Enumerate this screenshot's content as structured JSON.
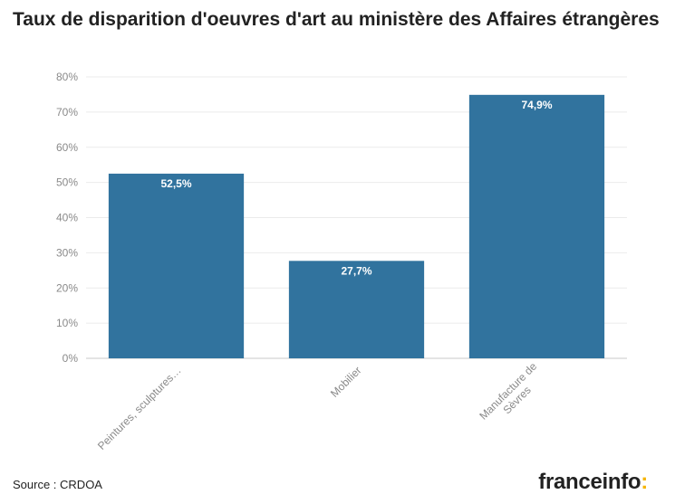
{
  "header": {
    "title": "Taux de disparition d'oeuvres d'art au ministère des Affaires étrangères"
  },
  "footer": {
    "source": "Source : CRDOA",
    "brand_name": "franceinfo",
    "brand_colon": ":"
  },
  "colors": {
    "bar": "#31739e",
    "brand_accent": "#f5b400"
  },
  "chart_data": {
    "type": "bar",
    "categories": [
      "Peintures, sculptures…",
      "Mobilier",
      "Manufacture de Sèvres"
    ],
    "category_lines": [
      [
        "Peintures, sculptures…"
      ],
      [
        "Mobilier"
      ],
      [
        "Manufacture de",
        "Sèvres"
      ]
    ],
    "values": [
      52.5,
      27.7,
      74.9
    ],
    "value_labels": [
      "52,5%",
      "27,7%",
      "74,9%"
    ],
    "unit": "%",
    "ylim": [
      0,
      80
    ],
    "yticks": [
      0,
      10,
      20,
      30,
      40,
      50,
      60,
      70,
      80
    ],
    "ytick_labels": [
      "0%",
      "10%",
      "20%",
      "30%",
      "40%",
      "50%",
      "60%",
      "70%",
      "80%"
    ],
    "grid": true,
    "legend": "none",
    "xlabel": "",
    "ylabel": ""
  }
}
